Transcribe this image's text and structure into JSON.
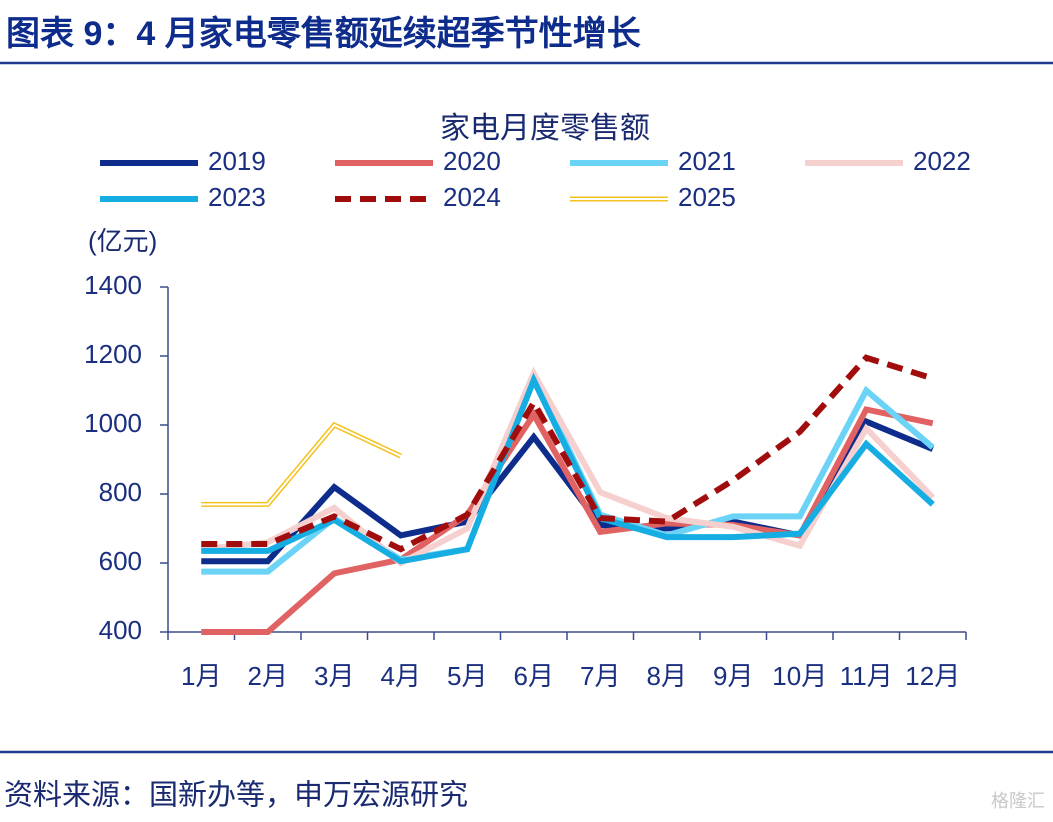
{
  "header": {
    "title": "图表 9：4 月家电零售额延续超季节性增长"
  },
  "chart_data": {
    "type": "line",
    "title": "家电月度零售额",
    "y_axis_label": "(亿元)",
    "categories": [
      "1月",
      "2月",
      "3月",
      "4月",
      "5月",
      "6月",
      "7月",
      "8月",
      "9月",
      "10月",
      "11月",
      "12月"
    ],
    "ylim": [
      400,
      1400
    ],
    "yticks": [
      400,
      600,
      800,
      1000,
      1200,
      1400
    ],
    "series": [
      {
        "name": "2019",
        "color": "#0e2c8c",
        "line_style": "solid",
        "values": [
          605,
          605,
          820,
          680,
          720,
          965,
          710,
          700,
          720,
          680,
          1010,
          930
        ]
      },
      {
        "name": "2020",
        "color": "#e06262",
        "line_style": "solid",
        "values": [
          400,
          400,
          570,
          610,
          740,
          1030,
          690,
          715,
          710,
          680,
          1045,
          1005
        ]
      },
      {
        "name": "2021",
        "color": "#6bd3f5",
        "line_style": "solid",
        "values": [
          575,
          575,
          730,
          610,
          640,
          1140,
          740,
          680,
          735,
          735,
          1100,
          935
        ]
      },
      {
        "name": "2022",
        "color": "#f6cfcf",
        "line_style": "solid",
        "values": [
          640,
          660,
          760,
          600,
          700,
          1150,
          805,
          730,
          705,
          650,
          990,
          790
        ]
      },
      {
        "name": "2023",
        "color": "#16ade2",
        "line_style": "solid",
        "values": [
          635,
          635,
          725,
          605,
          640,
          1130,
          730,
          675,
          675,
          685,
          945,
          770
        ]
      },
      {
        "name": "2024",
        "color": "#a10d0d",
        "line_style": "dashed",
        "values": [
          655,
          655,
          735,
          640,
          740,
          1065,
          730,
          720,
          840,
          980,
          1195,
          1135
        ]
      },
      {
        "name": "2025",
        "color": "#f4c21e",
        "line_style": "double",
        "values": [
          770,
          770,
          1000,
          910,
          null,
          null,
          null,
          null,
          null,
          null,
          null,
          null
        ]
      }
    ]
  },
  "footer": {
    "source": "资料来源：国新办等，申万宏源研究",
    "watermark": "格隆汇"
  }
}
